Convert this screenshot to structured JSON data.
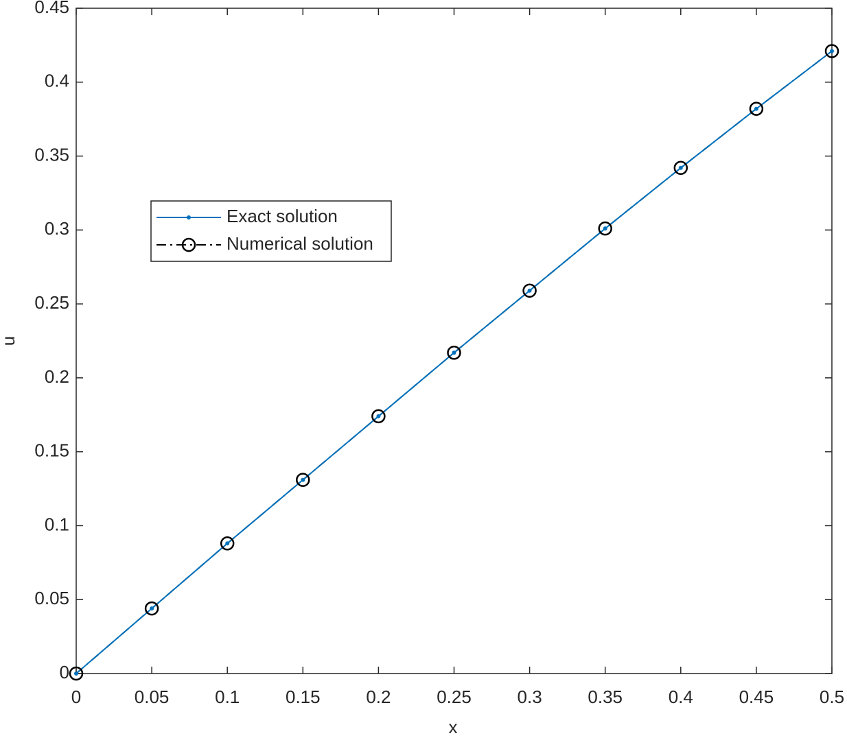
{
  "chart_data": {
    "type": "line",
    "x_label": "x",
    "y_label": "u",
    "x": [
      0,
      0.05,
      0.1,
      0.15,
      0.2,
      0.25,
      0.3,
      0.35,
      0.4,
      0.45,
      0.5
    ],
    "series": [
      {
        "name": "Exact solution",
        "color": "#0072bd",
        "line_style": "solid",
        "marker": "dot",
        "values": [
          0,
          0.044,
          0.088,
          0.131,
          0.174,
          0.217,
          0.259,
          0.301,
          0.342,
          0.382,
          0.421
        ]
      },
      {
        "name": "Numerical solution",
        "color": "#000000",
        "line_style": "dashdot",
        "marker": "circle",
        "values": [
          0,
          0.044,
          0.088,
          0.131,
          0.174,
          0.217,
          0.259,
          0.301,
          0.342,
          0.382,
          0.421
        ]
      }
    ],
    "xlim": [
      0,
      0.5
    ],
    "ylim": [
      0,
      0.45
    ],
    "xticks": [
      0,
      0.05,
      0.1,
      0.15,
      0.2,
      0.25,
      0.3,
      0.35,
      0.4,
      0.45,
      0.5
    ],
    "yticks": [
      0,
      0.05,
      0.1,
      0.15,
      0.2,
      0.25,
      0.3,
      0.35,
      0.4,
      0.45
    ],
    "grid": false
  }
}
